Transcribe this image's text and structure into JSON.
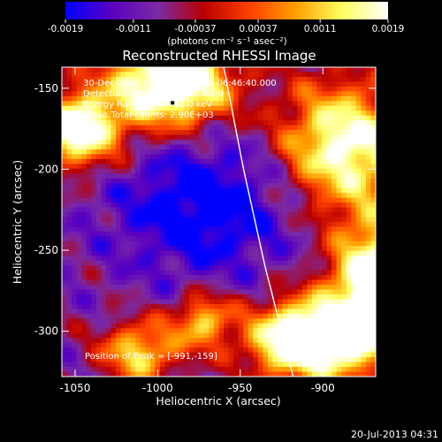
{
  "chart_data": {
    "type": "heatmap",
    "title": "Reconstructed RHESSI Image",
    "xlabel": "Heliocentric X (arcsec)",
    "ylabel": "Heliocentric Y (arcsec)",
    "xlim": [
      -1058,
      -868
    ],
    "ylim": [
      -328,
      -137
    ],
    "x_ticks": [
      -1050,
      -1000,
      -950,
      -900
    ],
    "x_tick_labels": [
      "-1050",
      "-1000",
      "-950",
      "-900"
    ],
    "y_ticks": [
      -150,
      -200,
      -250,
      -300
    ],
    "y_tick_labels": [
      "-150",
      "-200",
      "-250",
      "-300"
    ],
    "annotations": [
      "30-Dec-2006 06:46:12.000 to 06:46:40.000",
      "Detectors: 4F 5F 6F 7F 8F, Att 0",
      "Energy Range: 6.0 - 12.0 keV",
      "Clean    Total counts: 2.90E+03"
    ],
    "peak_label": "Position of Peak = [-991,-159]",
    "peak": [
      -991,
      -159
    ],
    "colorbar": {
      "range": [
        -0.0019,
        0.0019
      ],
      "tick_values": [
        -0.0019,
        -0.0011,
        -0.00037,
        0.00037,
        0.0011,
        0.0019
      ],
      "tick_labels": [
        "-0.0019",
        "-0.0011",
        "-0.00037",
        "0.00037",
        "0.0011",
        "0.0019"
      ],
      "unit_label": "(photons cm⁻² s⁻¹ asec⁻²)",
      "colormap": [
        "#0000ff",
        "#5a00c0",
        "#7a2aa6",
        "#b80000",
        "#ff4000",
        "#ffa000",
        "#ffff60",
        "#ffffff"
      ]
    },
    "limb_curve": [
      [
        -960,
        -137
      ],
      [
        -948,
        -200
      ],
      [
        -935,
        -260
      ],
      [
        -925,
        -300
      ],
      [
        -918,
        -328
      ]
    ],
    "grid": false,
    "legend": "none"
  },
  "footer": {
    "timestamp": "20-Jul-2013 04:31"
  }
}
